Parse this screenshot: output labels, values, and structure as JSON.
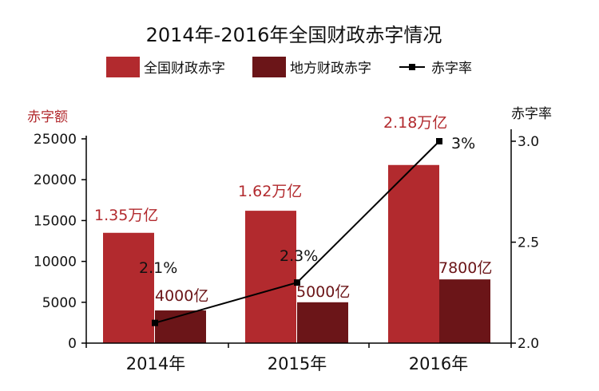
{
  "chart_data": {
    "type": "bar",
    "title": "2014年-2016年全国财政赤字情况",
    "categories": [
      "2014年",
      "2015年",
      "2016年"
    ],
    "series": [
      {
        "name": "全国财政赤字",
        "kind": "bar",
        "color": "#b22a2e",
        "values": [
          13500,
          16200,
          21800
        ],
        "labels": [
          "1.35万亿",
          "1.62万亿",
          "2.18万亿"
        ]
      },
      {
        "name": "地方财政赤字",
        "kind": "bar",
        "color": "#6b1518",
        "values": [
          4000,
          5000,
          7800
        ],
        "labels": [
          "4000亿",
          "5000亿",
          "7800亿"
        ]
      },
      {
        "name": "赤字率",
        "kind": "line",
        "axis": "right",
        "color": "#000000",
        "values": [
          2.1,
          2.3,
          3.0
        ],
        "labels": [
          "2.1%",
          "2.3%",
          "3%"
        ]
      }
    ],
    "ylabel": "赤字额",
    "ylim": [
      0,
      25000
    ],
    "yticks": [
      0,
      5000,
      10000,
      15000,
      20000,
      25000
    ],
    "y2label": "赤字率",
    "y2lim": [
      2.0,
      3.0
    ],
    "y2ticks": [
      "2.0",
      "2.5",
      "3.0"
    ],
    "legend_position": "top",
    "grid": false,
    "colors": {
      "left_axis_title": "#b22a2e",
      "national_label": "#b22a2e",
      "local_label": "#6b1518"
    }
  }
}
